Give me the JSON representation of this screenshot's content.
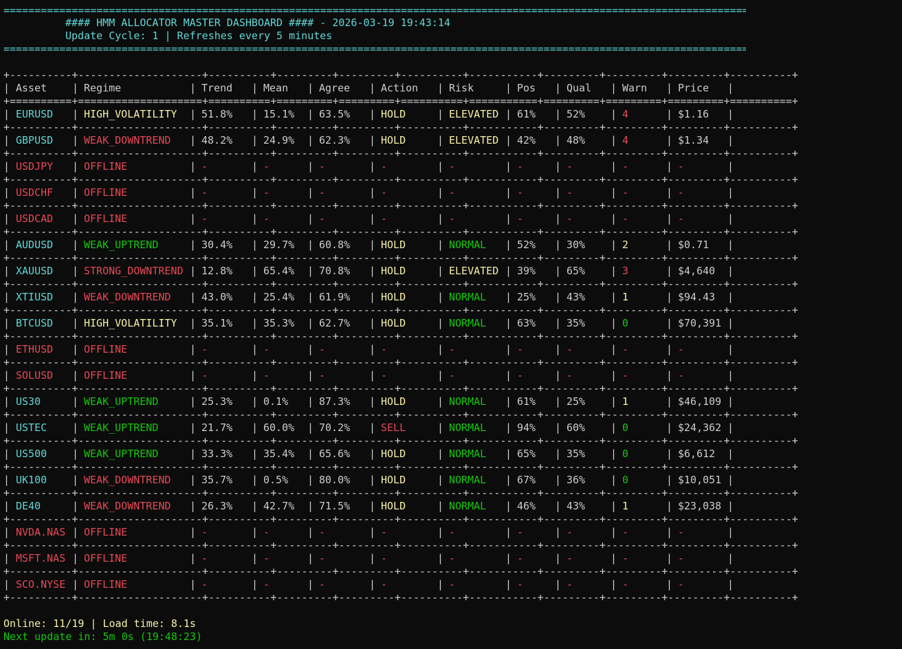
{
  "title_rule": "=========================================================================================================================================",
  "header": {
    "title": "#### HMM ALLOCATOR MASTER DASHBOARD #### - 2026-03-19 19:43:14",
    "subtitle": "Update Cycle: 1 | Refreshes every 5 minutes"
  },
  "table": {
    "border_rule": "+----------+--------------------+----------+---------+---------+----------+-----------+---------+---------+---------+----------+",
    "header_rule": "+==========+====================+==========+=========+=========+==========+===========+=========+=========+=========+==========+",
    "columns": [
      "Asset",
      "Regime",
      "Trend",
      "Mean",
      "Agree",
      "Action",
      "Risk",
      "Pos",
      "Qual",
      "Warn",
      "Price"
    ],
    "rows": [
      {
        "asset": "EURUSD",
        "regime": "HIGH_VOLATILITY",
        "trend": "51.8%",
        "mean": "15.1%",
        "agree": "63.5%",
        "action": "HOLD",
        "risk": "ELEVATED",
        "pos": "61%",
        "qual": "52%",
        "warn": "4",
        "price": "$1.16"
      },
      {
        "asset": "GBPUSD",
        "regime": "WEAK_DOWNTREND",
        "trend": "48.2%",
        "mean": "24.9%",
        "agree": "62.3%",
        "action": "HOLD",
        "risk": "ELEVATED",
        "pos": "42%",
        "qual": "48%",
        "warn": "4",
        "price": "$1.34"
      },
      {
        "asset": "USDJPY",
        "regime": "OFFLINE",
        "trend": "-",
        "mean": "-",
        "agree": "-",
        "action": "-",
        "risk": "-",
        "pos": "-",
        "qual": "-",
        "warn": "-",
        "price": "-"
      },
      {
        "asset": "USDCHF",
        "regime": "OFFLINE",
        "trend": "-",
        "mean": "-",
        "agree": "-",
        "action": "-",
        "risk": "-",
        "pos": "-",
        "qual": "-",
        "warn": "-",
        "price": "-"
      },
      {
        "asset": "USDCAD",
        "regime": "OFFLINE",
        "trend": "-",
        "mean": "-",
        "agree": "-",
        "action": "-",
        "risk": "-",
        "pos": "-",
        "qual": "-",
        "warn": "-",
        "price": "-"
      },
      {
        "asset": "AUDUSD",
        "regime": "WEAK_UPTREND",
        "trend": "30.4%",
        "mean": "29.7%",
        "agree": "60.8%",
        "action": "HOLD",
        "risk": "NORMAL",
        "pos": "52%",
        "qual": "30%",
        "warn": "2",
        "price": "$0.71"
      },
      {
        "asset": "XAUUSD",
        "regime": "STRONG_DOWNTREND",
        "trend": "12.8%",
        "mean": "65.4%",
        "agree": "70.8%",
        "action": "HOLD",
        "risk": "ELEVATED",
        "pos": "39%",
        "qual": "65%",
        "warn": "3",
        "price": "$4,640"
      },
      {
        "asset": "XTIUSD",
        "regime": "WEAK_DOWNTREND",
        "trend": "43.0%",
        "mean": "25.4%",
        "agree": "61.9%",
        "action": "HOLD",
        "risk": "NORMAL",
        "pos": "25%",
        "qual": "43%",
        "warn": "1",
        "price": "$94.43"
      },
      {
        "asset": "BTCUSD",
        "regime": "HIGH_VOLATILITY",
        "trend": "35.1%",
        "mean": "35.3%",
        "agree": "62.7%",
        "action": "HOLD",
        "risk": "NORMAL",
        "pos": "63%",
        "qual": "35%",
        "warn": "0",
        "price": "$70,391"
      },
      {
        "asset": "ETHUSD",
        "regime": "OFFLINE",
        "trend": "-",
        "mean": "-",
        "agree": "-",
        "action": "-",
        "risk": "-",
        "pos": "-",
        "qual": "-",
        "warn": "-",
        "price": "-"
      },
      {
        "asset": "SOLUSD",
        "regime": "OFFLINE",
        "trend": "-",
        "mean": "-",
        "agree": "-",
        "action": "-",
        "risk": "-",
        "pos": "-",
        "qual": "-",
        "warn": "-",
        "price": "-"
      },
      {
        "asset": "US30",
        "regime": "WEAK_UPTREND",
        "trend": "25.3%",
        "mean": "0.1%",
        "agree": "87.3%",
        "action": "HOLD",
        "risk": "NORMAL",
        "pos": "61%",
        "qual": "25%",
        "warn": "1",
        "price": "$46,109"
      },
      {
        "asset": "USTEC",
        "regime": "WEAK_UPTREND",
        "trend": "21.7%",
        "mean": "60.0%",
        "agree": "70.2%",
        "action": "SELL",
        "risk": "NORMAL",
        "pos": "94%",
        "qual": "60%",
        "warn": "0",
        "price": "$24,362"
      },
      {
        "asset": "US500",
        "regime": "WEAK_UPTREND",
        "trend": "33.3%",
        "mean": "35.4%",
        "agree": "65.6%",
        "action": "HOLD",
        "risk": "NORMAL",
        "pos": "65%",
        "qual": "35%",
        "warn": "0",
        "price": "$6,612"
      },
      {
        "asset": "UK100",
        "regime": "WEAK_DOWNTREND",
        "trend": "35.7%",
        "mean": "0.5%",
        "agree": "80.0%",
        "action": "HOLD",
        "risk": "NORMAL",
        "pos": "67%",
        "qual": "36%",
        "warn": "0",
        "price": "$10,051"
      },
      {
        "asset": "DE40",
        "regime": "WEAK_DOWNTREND",
        "trend": "26.3%",
        "mean": "42.7%",
        "agree": "71.5%",
        "action": "HOLD",
        "risk": "NORMAL",
        "pos": "46%",
        "qual": "43%",
        "warn": "1",
        "price": "$23,038"
      },
      {
        "asset": "NVDA.NAS",
        "regime": "OFFLINE",
        "trend": "-",
        "mean": "-",
        "agree": "-",
        "action": "-",
        "risk": "-",
        "pos": "-",
        "qual": "-",
        "warn": "-",
        "price": "-"
      },
      {
        "asset": "MSFT.NAS",
        "regime": "OFFLINE",
        "trend": "-",
        "mean": "-",
        "agree": "-",
        "action": "-",
        "risk": "-",
        "pos": "-",
        "qual": "-",
        "warn": "-",
        "price": "-"
      },
      {
        "asset": "SCO.NYSE",
        "regime": "OFFLINE",
        "trend": "-",
        "mean": "-",
        "agree": "-",
        "action": "-",
        "risk": "-",
        "pos": "-",
        "qual": "-",
        "warn": "-",
        "price": "-"
      }
    ]
  },
  "footer": {
    "online": "Online: 11/19 | Load time: 8.1s",
    "next_update": "Next update in: 5m 0s (19:48:23)"
  },
  "colors": {
    "background": "#0c0c0c",
    "text": "#cccccc",
    "cyan": "#61d6d6",
    "red": "#e74856",
    "yellow": "#f9f1a5",
    "green": "#16c60c"
  }
}
